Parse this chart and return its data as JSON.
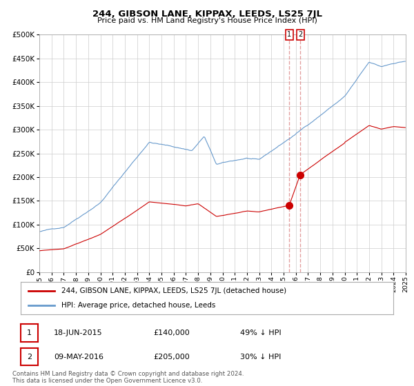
{
  "title": "244, GIBSON LANE, KIPPAX, LEEDS, LS25 7JL",
  "subtitle": "Price paid vs. HM Land Registry's House Price Index (HPI)",
  "legend_line1": "244, GIBSON LANE, KIPPAX, LEEDS, LS25 7JL (detached house)",
  "legend_line2": "HPI: Average price, detached house, Leeds",
  "footer_line1": "Contains HM Land Registry data © Crown copyright and database right 2024.",
  "footer_line2": "This data is licensed under the Open Government Licence v3.0.",
  "transaction1_label": "1",
  "transaction1_date": "18-JUN-2015",
  "transaction1_price": "£140,000",
  "transaction1_hpi": "49% ↓ HPI",
  "transaction1_decimal_date": 2015.46,
  "transaction1_value": 140000,
  "transaction2_label": "2",
  "transaction2_date": "09-MAY-2016",
  "transaction2_price": "£205,000",
  "transaction2_hpi": "30% ↓ HPI",
  "transaction2_decimal_date": 2016.36,
  "transaction2_value": 205000,
  "red_color": "#cc0000",
  "blue_color": "#6699cc",
  "dashed_color": "#dd8888",
  "grid_color": "#cccccc",
  "background_color": "#ffffff",
  "ylim": [
    0,
    500000
  ],
  "yticks": [
    0,
    50000,
    100000,
    150000,
    200000,
    250000,
    300000,
    350000,
    400000,
    450000,
    500000
  ],
  "xlim_start": 1995,
  "xlim_end": 2025
}
